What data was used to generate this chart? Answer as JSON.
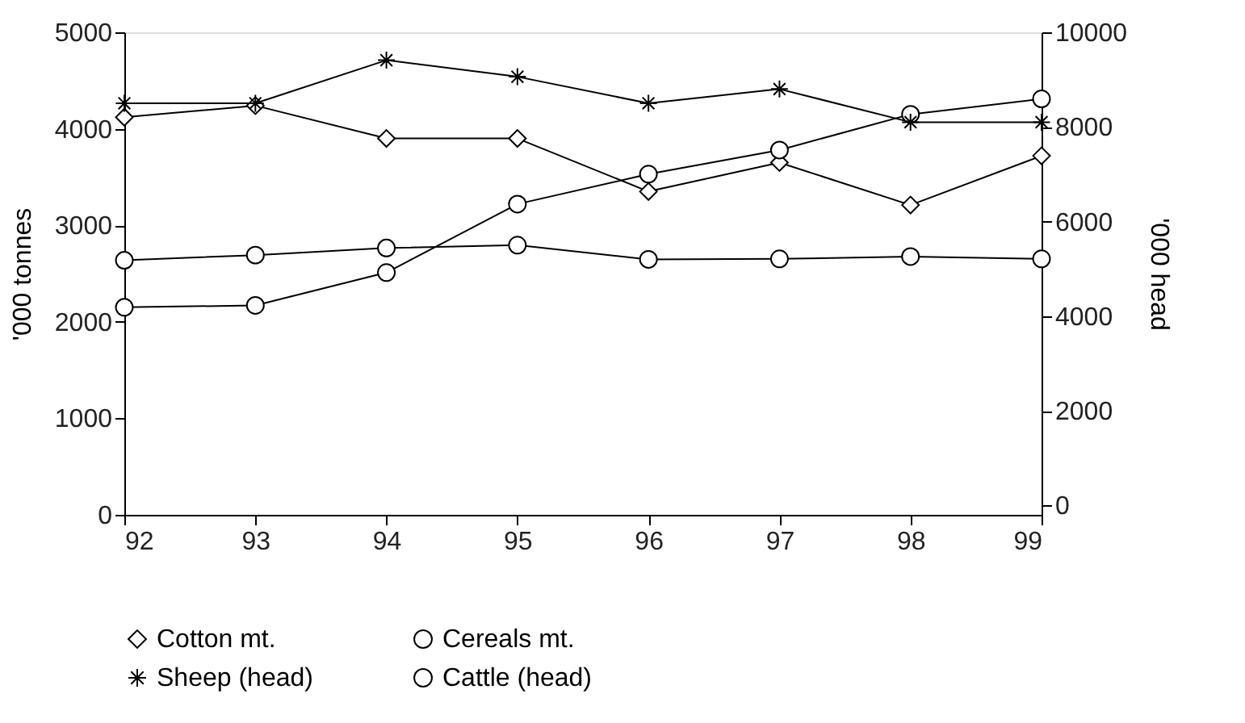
{
  "chart_data": {
    "type": "line",
    "x": [
      92,
      93,
      94,
      95,
      96,
      97,
      98,
      99
    ],
    "ylabel": "'000 tonnes",
    "y2label": "'000 head",
    "series": [
      {
        "name": "Cotton mt.",
        "color": "#000000",
        "marker": "diamond",
        "axis": "y",
        "values": [
          4120,
          4240,
          3900,
          3900,
          3350,
          3650,
          3210,
          3720
        ]
      },
      {
        "name": "Cereals mt.",
        "color": "#000000",
        "marker": "circle",
        "axis": "y",
        "values": [
          2150,
          2170,
          2510,
          3220,
          3530,
          3780,
          4150,
          4310
        ]
      },
      {
        "name": "Sheep (head)",
        "color": "#000000",
        "marker": "cross",
        "axis": "y2",
        "values": [
          8500,
          8500,
          9410,
          9060,
          8500,
          8800,
          8100,
          8100
        ]
      },
      {
        "name": "Cattle (head)",
        "color": "#000000",
        "marker": "circle",
        "axis": "y2",
        "values": [
          5180,
          5290,
          5440,
          5500,
          5200,
          5210,
          5260,
          5210
        ]
      }
    ],
    "xlim": [
      92,
      99
    ],
    "xticks": [
      92,
      93,
      94,
      95,
      96,
      97,
      98,
      99
    ],
    "ylim": [
      0,
      5000
    ],
    "yticks": [
      0,
      1000,
      2000,
      3000,
      4000,
      5000
    ],
    "y2lim": [
      -200,
      10000
    ],
    "y2ticks": [
      0,
      2000,
      4000,
      6000,
      8000,
      10000
    ],
    "grid": false,
    "legend": "bottom",
    "line_style": "solid"
  }
}
